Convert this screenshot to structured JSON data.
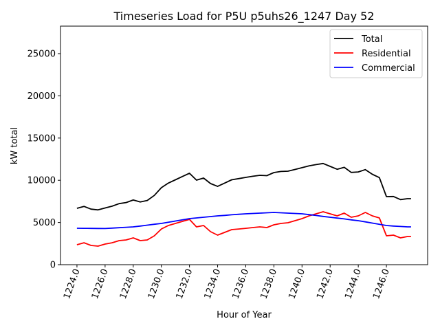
{
  "chart_data": {
    "type": "line",
    "title": "Timeseries Load for P5U p5uhs26_1247  Day 52",
    "xlabel": "Hour of Year",
    "ylabel": "kW total",
    "xlim": [
      1222.83,
      1248.93
    ],
    "ylim": [
      0,
      28260
    ],
    "xticks": [
      1224,
      1226,
      1228,
      1230,
      1232,
      1234,
      1236,
      1238,
      1240,
      1242,
      1244,
      1246
    ],
    "xtick_labels": [
      "1224.0",
      "1226.0",
      "1228.0",
      "1230.0",
      "1232.0",
      "1234.0",
      "1236.0",
      "1238.0",
      "1240.0",
      "1242.0",
      "1244.0",
      "1246.0"
    ],
    "yticks": [
      0,
      5000,
      10000,
      15000,
      20000,
      25000
    ],
    "ytick_labels": [
      "0",
      "5000",
      "10000",
      "15000",
      "20000",
      "25000"
    ],
    "legend_position": "top-right",
    "grid": false,
    "x": [
      1224,
      1224.5,
      1225,
      1225.5,
      1226,
      1226.5,
      1227,
      1227.5,
      1228,
      1228.5,
      1229,
      1229.5,
      1230,
      1230.5,
      1231,
      1231.5,
      1232,
      1232.5,
      1233,
      1233.5,
      1234,
      1234.5,
      1235,
      1235.5,
      1236,
      1236.5,
      1237,
      1237.5,
      1238,
      1238.5,
      1239,
      1239.5,
      1240,
      1240.5,
      1241,
      1241.5,
      1242,
      1242.5,
      1243,
      1243.5,
      1244,
      1244.5,
      1245,
      1245.5,
      1246,
      1246.5,
      1247,
      1247.5,
      1247.75
    ],
    "series": [
      {
        "name": "Total",
        "color": "#000000",
        "values": [
          6680,
          6910,
          6580,
          6490,
          6720,
          6930,
          7230,
          7360,
          7660,
          7430,
          7610,
          8210,
          9120,
          9670,
          10060,
          10450,
          10830,
          10020,
          10260,
          9610,
          9280,
          9670,
          10060,
          10200,
          10340,
          10470,
          10590,
          10550,
          10910,
          11040,
          11080,
          11280,
          11490,
          11710,
          11860,
          11990,
          11650,
          11300,
          11530,
          10930,
          10990,
          11260,
          10710,
          10320,
          8060,
          8080,
          7710,
          7820,
          7820
        ]
      },
      {
        "name": "Residential",
        "color": "#ff0000",
        "values": [
          2360,
          2600,
          2280,
          2200,
          2440,
          2600,
          2850,
          2930,
          3180,
          2850,
          2930,
          3420,
          4230,
          4640,
          4890,
          5130,
          5370,
          4480,
          4640,
          3910,
          3500,
          3830,
          4150,
          4230,
          4310,
          4400,
          4480,
          4400,
          4720,
          4890,
          4970,
          5210,
          5460,
          5780,
          6030,
          6270,
          6030,
          5780,
          6110,
          5620,
          5780,
          6190,
          5780,
          5540,
          3420,
          3500,
          3180,
          3340,
          3340
        ]
      },
      {
        "name": "Commercial",
        "color": "#0000ff",
        "values": [
          4320,
          4310,
          4300,
          4290,
          4280,
          4330,
          4380,
          4430,
          4480,
          4580,
          4680,
          4790,
          4890,
          5030,
          5170,
          5320,
          5460,
          5540,
          5620,
          5700,
          5780,
          5840,
          5910,
          5970,
          6030,
          6070,
          6110,
          6150,
          6190,
          6150,
          6110,
          6070,
          6030,
          5930,
          5830,
          5720,
          5620,
          5520,
          5420,
          5310,
          5210,
          5070,
          4930,
          4780,
          4640,
          4580,
          4530,
          4480,
          4480
        ]
      }
    ]
  }
}
